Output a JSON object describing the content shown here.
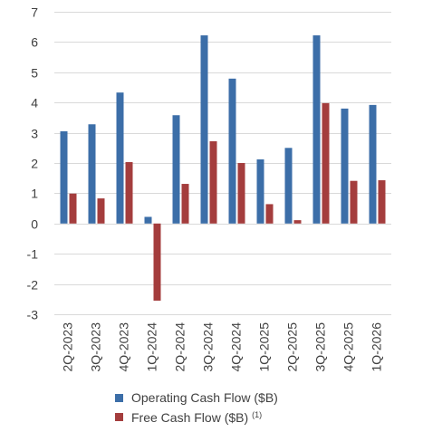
{
  "chart_data": {
    "type": "bar",
    "title": "",
    "xlabel": "",
    "ylabel": "",
    "ylim": [
      -3,
      7
    ],
    "yticks": [
      7,
      6,
      5,
      4,
      3,
      2,
      1,
      0,
      -1,
      -2,
      -3
    ],
    "grid": true,
    "legend_position": "bottom",
    "categories": [
      "2Q-2023",
      "3Q-2023",
      "4Q-2023",
      "1Q-2024",
      "2Q-2024",
      "3Q-2024",
      "4Q-2024",
      "1Q-2025",
      "2Q-2025",
      "3Q-2025",
      "4Q-2025",
      "1Q-2026"
    ],
    "series": [
      {
        "name": "Operating Cash Flow ($B)",
        "color": "#3C6EA8",
        "values": [
          3.05,
          3.28,
          4.33,
          0.22,
          3.58,
          6.22,
          4.79,
          2.12,
          2.5,
          6.22,
          3.8,
          3.92
        ]
      },
      {
        "name": "Free Cash Flow ($B)",
        "superscript": "(1)",
        "color": "#A43D3D",
        "values": [
          0.99,
          0.83,
          2.03,
          -2.55,
          1.31,
          2.72,
          2.0,
          0.64,
          0.11,
          3.98,
          1.41,
          1.43
        ]
      }
    ]
  }
}
